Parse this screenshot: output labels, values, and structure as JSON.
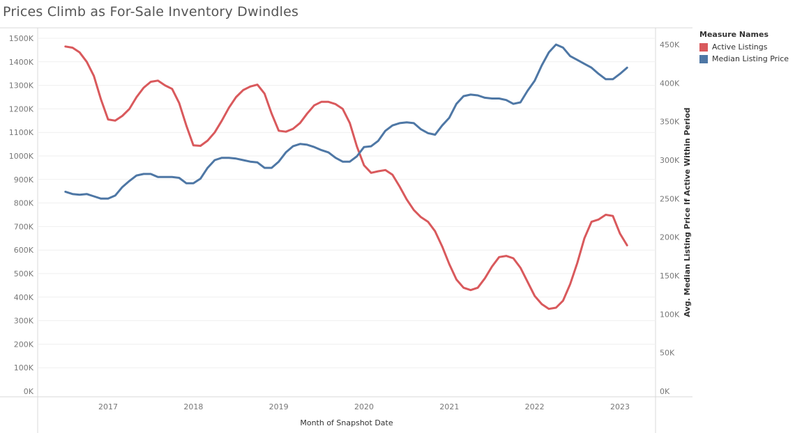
{
  "title": "Prices Climb as For-Sale Inventory Dwindles",
  "chart_data": {
    "type": "line",
    "title": "Prices Climb as For-Sale Inventory Dwindles",
    "xlabel": "Month of Snapshot Date",
    "ylabel_left": "",
    "ylabel_right": "Avg. Median Listing Price If Active Within Period",
    "x_ticks": [
      "2017",
      "2018",
      "2019",
      "2020",
      "2021",
      "2022",
      "2023"
    ],
    "y_left_ticks": [
      "0K",
      "100K",
      "200K",
      "300K",
      "400K",
      "500K",
      "600K",
      "700K",
      "800K",
      "900K",
      "1000K",
      "1100K",
      "1200K",
      "1300K",
      "1400K",
      "1500K"
    ],
    "y_right_ticks": [
      "0K",
      "50K",
      "100K",
      "150K",
      "200K",
      "250K",
      "300K",
      "350K",
      "400K",
      "450K"
    ],
    "y_left_range": [
      0,
      1500000
    ],
    "y_right_range": [
      0,
      450000
    ],
    "x_range": [
      "2016-07",
      "2023-02"
    ],
    "grid": true,
    "legend": {
      "title": "Measure Names",
      "position": "top-right",
      "items": [
        {
          "name": "Active Listings",
          "color": "#d9595c"
        },
        {
          "name": "Median Listing Price",
          "color": "#4e77a5"
        }
      ]
    },
    "series": [
      {
        "name": "Active Listings",
        "axis": "left",
        "color": "#d9595c",
        "x": [
          "2016-07",
          "2016-08",
          "2016-09",
          "2016-10",
          "2016-11",
          "2016-12",
          "2017-01",
          "2017-02",
          "2017-03",
          "2017-04",
          "2017-05",
          "2017-06",
          "2017-07",
          "2017-08",
          "2017-09",
          "2017-10",
          "2017-11",
          "2017-12",
          "2018-01",
          "2018-02",
          "2018-03",
          "2018-04",
          "2018-05",
          "2018-06",
          "2018-07",
          "2018-08",
          "2018-09",
          "2018-10",
          "2018-11",
          "2018-12",
          "2019-01",
          "2019-02",
          "2019-03",
          "2019-04",
          "2019-05",
          "2019-06",
          "2019-07",
          "2019-08",
          "2019-09",
          "2019-10",
          "2019-11",
          "2019-12",
          "2020-01",
          "2020-02",
          "2020-03",
          "2020-04",
          "2020-05",
          "2020-06",
          "2020-07",
          "2020-08",
          "2020-09",
          "2020-10",
          "2020-11",
          "2020-12",
          "2021-01",
          "2021-02",
          "2021-03",
          "2021-04",
          "2021-05",
          "2021-06",
          "2021-07",
          "2021-08",
          "2021-09",
          "2021-10",
          "2021-11",
          "2021-12",
          "2022-01",
          "2022-02",
          "2022-03",
          "2022-04",
          "2022-05",
          "2022-06",
          "2022-07",
          "2022-08",
          "2022-09",
          "2022-10",
          "2022-11",
          "2022-12",
          "2023-01",
          "2023-02"
        ],
        "values": [
          1465000,
          1460000,
          1440000,
          1400000,
          1340000,
          1240000,
          1155000,
          1150000,
          1170000,
          1200000,
          1250000,
          1290000,
          1315000,
          1320000,
          1300000,
          1285000,
          1225000,
          1130000,
          1045000,
          1043000,
          1065000,
          1100000,
          1150000,
          1205000,
          1250000,
          1280000,
          1295000,
          1303000,
          1265000,
          1180000,
          1107000,
          1103000,
          1115000,
          1140000,
          1180000,
          1215000,
          1230000,
          1230000,
          1220000,
          1200000,
          1140000,
          1040000,
          960000,
          928000,
          935000,
          940000,
          920000,
          870000,
          815000,
          770000,
          740000,
          720000,
          680000,
          615000,
          540000,
          475000,
          440000,
          430000,
          440000,
          480000,
          530000,
          570000,
          575000,
          565000,
          525000,
          465000,
          405000,
          370000,
          350000,
          355000,
          385000,
          455000,
          545000,
          650000,
          720000,
          730000,
          750000,
          745000,
          670000,
          620000
        ]
      },
      {
        "name": "Median Listing Price",
        "axis": "right",
        "color": "#4e77a5",
        "x": [
          "2016-07",
          "2016-08",
          "2016-09",
          "2016-10",
          "2016-11",
          "2016-12",
          "2017-01",
          "2017-02",
          "2017-03",
          "2017-04",
          "2017-05",
          "2017-06",
          "2017-07",
          "2017-08",
          "2017-09",
          "2017-10",
          "2017-11",
          "2017-12",
          "2018-01",
          "2018-02",
          "2018-03",
          "2018-04",
          "2018-05",
          "2018-06",
          "2018-07",
          "2018-08",
          "2018-09",
          "2018-10",
          "2018-11",
          "2018-12",
          "2019-01",
          "2019-02",
          "2019-03",
          "2019-04",
          "2019-05",
          "2019-06",
          "2019-07",
          "2019-08",
          "2019-09",
          "2019-10",
          "2019-11",
          "2019-12",
          "2020-01",
          "2020-02",
          "2020-03",
          "2020-04",
          "2020-05",
          "2020-06",
          "2020-07",
          "2020-08",
          "2020-09",
          "2020-10",
          "2020-11",
          "2020-12",
          "2021-01",
          "2021-02",
          "2021-03",
          "2021-04",
          "2021-05",
          "2021-06",
          "2021-07",
          "2021-08",
          "2021-09",
          "2021-10",
          "2021-11",
          "2021-12",
          "2022-01",
          "2022-02",
          "2022-03",
          "2022-04",
          "2022-05",
          "2022-06",
          "2022-07",
          "2022-08",
          "2022-09",
          "2022-10",
          "2022-11",
          "2022-12",
          "2023-01",
          "2023-02"
        ],
        "values": [
          259000,
          256000,
          255000,
          256000,
          253000,
          250000,
          250000,
          254000,
          265000,
          273000,
          280000,
          282000,
          282000,
          278000,
          278000,
          278000,
          277000,
          270000,
          270000,
          276000,
          290000,
          300000,
          303000,
          303000,
          302000,
          300000,
          298000,
          297000,
          290000,
          290000,
          298000,
          310000,
          318000,
          321000,
          320000,
          317000,
          313000,
          310000,
          303000,
          298000,
          298000,
          305000,
          317000,
          318000,
          325000,
          338000,
          345000,
          348000,
          349000,
          348000,
          340000,
          335000,
          333000,
          345000,
          355000,
          373000,
          383000,
          385000,
          384000,
          381000,
          380000,
          380000,
          378000,
          373000,
          375000,
          390000,
          403000,
          423000,
          440000,
          450000,
          446000,
          435000,
          430000,
          425000,
          420000,
          412000,
          405000,
          405000,
          412000,
          420000
        ]
      }
    ]
  }
}
